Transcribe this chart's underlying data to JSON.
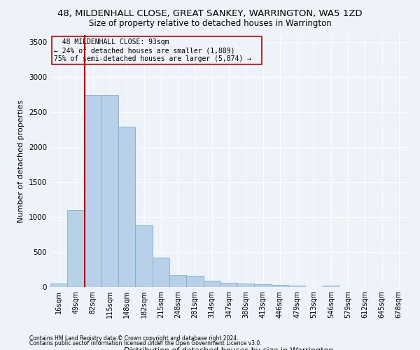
{
  "title1": "48, MILDENHALL CLOSE, GREAT SANKEY, WARRINGTON, WA5 1ZD",
  "title2": "Size of property relative to detached houses in Warrington",
  "xlabel": "Distribution of detached houses by size in Warrington",
  "ylabel": "Number of detached properties",
  "footer1": "Contains HM Land Registry data © Crown copyright and database right 2024.",
  "footer2": "Contains public sector information licensed under the Open Government Licence v3.0.",
  "annotation_line1": "48 MILDENHALL CLOSE: 93sqm",
  "annotation_line2": "← 24% of detached houses are smaller (1,889)",
  "annotation_line3": "75% of semi-detached houses are larger (5,874) →",
  "bar_labels": [
    "16sqm",
    "49sqm",
    "82sqm",
    "115sqm",
    "148sqm",
    "182sqm",
    "215sqm",
    "248sqm",
    "281sqm",
    "314sqm",
    "347sqm",
    "380sqm",
    "413sqm",
    "446sqm",
    "479sqm",
    "513sqm",
    "546sqm",
    "579sqm",
    "612sqm",
    "645sqm",
    "678sqm"
  ],
  "bar_values": [
    55,
    1100,
    2740,
    2740,
    2290,
    880,
    420,
    170,
    165,
    90,
    60,
    55,
    40,
    30,
    25,
    5,
    25,
    0,
    0,
    0,
    0
  ],
  "bar_color": "#b8d0e8",
  "bar_edge_color": "#7aafd4",
  "vline_color": "#cc0000",
  "annotation_box_color": "#cc0000",
  "ylim": [
    0,
    3600
  ],
  "yticks": [
    0,
    500,
    1000,
    1500,
    2000,
    2500,
    3000,
    3500
  ],
  "bg_color": "#eef2f9",
  "grid_color": "#ffffff",
  "title1_fontsize": 9.5,
  "title2_fontsize": 8.5,
  "xlabel_fontsize": 8,
  "ylabel_fontsize": 8,
  "annotation_fontsize": 7,
  "tick_fontsize": 7,
  "ytick_fontsize": 7.5
}
